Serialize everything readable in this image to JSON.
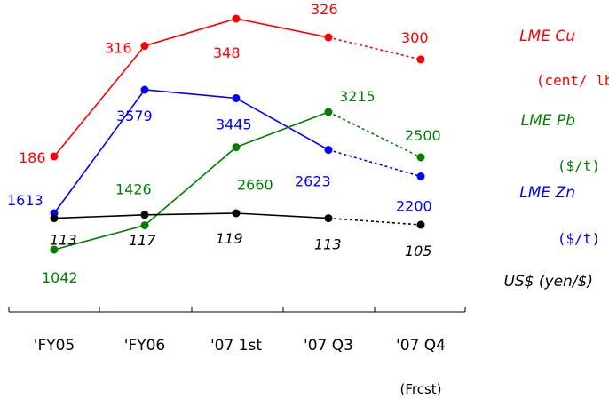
{
  "chart_data": {
    "type": "line",
    "categories": [
      "'FY05",
      "'FY06",
      "'07 1st",
      "'07 Q3",
      "'07 Q4"
    ],
    "category_note": "(Frcst)",
    "forecast_from_index": 3,
    "series": [
      {
        "key": "cu",
        "name": "LME Cu",
        "unit": "(cent/ lb)",
        "color": "#ff0000",
        "values": [
          186,
          316,
          348,
          326,
          300
        ],
        "labels": [
          "186",
          "316",
          "348",
          "326",
          "300"
        ]
      },
      {
        "key": "zn",
        "name": "LME Zn",
        "unit": "($/t)",
        "color": "#0000ff",
        "values": [
          1613,
          3579,
          3445,
          2623,
          2200
        ],
        "labels": [
          "1613",
          "3579",
          "3445",
          "2623",
          "2200"
        ]
      },
      {
        "key": "pb",
        "name": "LME Pb",
        "unit": "($/t)",
        "color": "#008000",
        "values": [
          1042,
          1426,
          2660,
          3215,
          2500
        ],
        "labels": [
          "1042",
          "1426",
          "2660",
          "3215",
          "2500"
        ]
      },
      {
        "key": "usd",
        "name": "US$ (yen/$)",
        "unit": "",
        "color": "#000000",
        "values": [
          113,
          117,
          119,
          113,
          105
        ],
        "labels": [
          "113",
          "117",
          "119",
          "113",
          "105"
        ]
      }
    ]
  }
}
